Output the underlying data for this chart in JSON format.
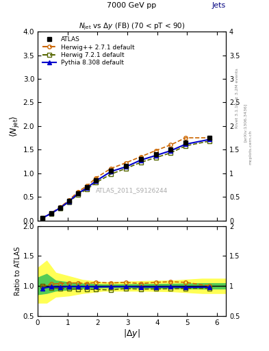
{
  "title_top": "7000 GeV pp",
  "title_right": "Jets",
  "main_title": "N$_{jet}$ vs $\\Delta$y (FB) (70 < pT < 90)",
  "watermark": "ATLAS_2011_S9126244",
  "xlabel": "|$\\Delta$y|",
  "ylabel_main": "$\\langle N_{jet}\\rangle$",
  "ylabel_ratio": "Ratio to ATLAS",
  "xlim": [
    0,
    6.3
  ],
  "ylim_main": [
    0,
    4.0
  ],
  "ylim_ratio": [
    0.5,
    2.0
  ],
  "atlas_x": [
    0.15,
    0.45,
    0.75,
    1.05,
    1.35,
    1.65,
    1.95,
    2.45,
    2.95,
    3.45,
    3.95,
    4.45,
    4.95,
    5.75
  ],
  "atlas_y": [
    0.05,
    0.15,
    0.27,
    0.41,
    0.58,
    0.7,
    0.85,
    1.05,
    1.15,
    1.3,
    1.4,
    1.5,
    1.65,
    1.75
  ],
  "atlas_yerr": [
    0.005,
    0.008,
    0.01,
    0.015,
    0.018,
    0.02,
    0.025,
    0.03,
    0.035,
    0.04,
    0.04,
    0.045,
    0.05,
    0.05
  ],
  "herwig1_x": [
    0.15,
    0.45,
    0.75,
    1.05,
    1.35,
    1.65,
    1.95,
    2.45,
    2.95,
    3.45,
    3.95,
    4.45,
    4.95,
    5.75
  ],
  "herwig1_y": [
    0.05,
    0.155,
    0.28,
    0.43,
    0.61,
    0.73,
    0.9,
    1.1,
    1.22,
    1.35,
    1.48,
    1.6,
    1.75,
    1.75
  ],
  "herwig2_x": [
    0.15,
    0.45,
    0.75,
    1.05,
    1.35,
    1.65,
    1.95,
    2.45,
    2.95,
    3.45,
    3.95,
    4.45,
    4.95,
    5.75
  ],
  "herwig2_y": [
    0.05,
    0.145,
    0.26,
    0.39,
    0.55,
    0.66,
    0.8,
    0.98,
    1.1,
    1.23,
    1.33,
    1.43,
    1.58,
    1.68
  ],
  "pythia_x": [
    0.15,
    0.45,
    0.75,
    1.05,
    1.35,
    1.65,
    1.95,
    2.45,
    2.95,
    3.45,
    3.95,
    4.45,
    4.95,
    5.75
  ],
  "pythia_y": [
    0.048,
    0.148,
    0.265,
    0.405,
    0.572,
    0.692,
    0.836,
    1.035,
    1.135,
    1.278,
    1.375,
    1.476,
    1.615,
    1.715
  ],
  "atlas_band_yellow_x": [
    0.0,
    0.3,
    0.6,
    1.05,
    1.5,
    2.2,
    3.5,
    4.5,
    5.5,
    6.3
  ],
  "atlas_band_yellow_lo": [
    0.72,
    0.72,
    0.82,
    0.84,
    0.88,
    0.92,
    0.92,
    0.91,
    0.88,
    0.88
  ],
  "atlas_band_yellow_hi": [
    1.3,
    1.42,
    1.22,
    1.16,
    1.1,
    1.06,
    1.08,
    1.09,
    1.12,
    1.12
  ],
  "atlas_band_green_x": [
    0.0,
    0.3,
    0.6,
    1.05,
    1.5,
    2.2,
    3.5,
    4.5,
    5.5,
    6.3
  ],
  "atlas_band_green_lo": [
    0.86,
    0.88,
    0.92,
    0.94,
    0.96,
    0.975,
    0.97,
    0.965,
    0.955,
    0.955
  ],
  "atlas_band_green_hi": [
    1.14,
    1.2,
    1.09,
    1.06,
    1.04,
    1.025,
    1.03,
    1.035,
    1.045,
    1.045
  ],
  "ratio_herwig1_x": [
    0.15,
    0.45,
    0.75,
    1.05,
    1.35,
    1.65,
    1.95,
    2.45,
    2.95,
    3.45,
    3.95,
    4.45,
    4.95,
    5.75
  ],
  "ratio_herwig1": [
    1.0,
    1.03,
    1.04,
    1.05,
    1.05,
    1.04,
    1.06,
    1.05,
    1.06,
    1.04,
    1.06,
    1.07,
    1.06,
    1.0
  ],
  "ratio_herwig2_x": [
    0.15,
    0.45,
    0.75,
    1.05,
    1.35,
    1.65,
    1.95,
    2.45,
    2.95,
    3.45,
    3.95,
    4.45,
    4.95,
    5.75
  ],
  "ratio_herwig2": [
    1.0,
    0.97,
    0.96,
    0.95,
    0.948,
    0.943,
    0.941,
    0.933,
    0.957,
    0.946,
    0.95,
    0.953,
    0.958,
    0.96
  ],
  "ratio_pythia_x": [
    0.15,
    0.45,
    0.75,
    1.05,
    1.35,
    1.65,
    1.95,
    2.45,
    2.95,
    3.45,
    3.95,
    4.45,
    4.95,
    5.75
  ],
  "ratio_pythia": [
    0.96,
    0.987,
    0.981,
    0.988,
    0.986,
    0.989,
    0.984,
    0.986,
    0.987,
    0.983,
    0.982,
    0.984,
    0.979,
    0.98
  ],
  "color_atlas": "#000000",
  "color_herwig1": "#cc6600",
  "color_herwig2": "#556600",
  "color_pythia": "#0000cc",
  "bg_color": "#ffffff"
}
